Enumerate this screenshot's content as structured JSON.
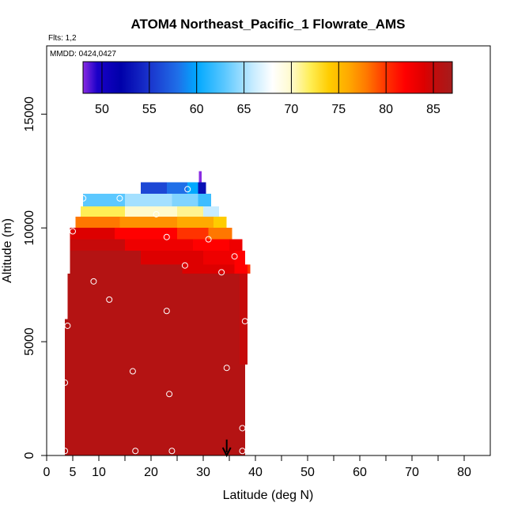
{
  "chart_data": {
    "type": "heatmap",
    "title": "ATOM4 Northeast_Pacific_1 Flowrate_AMS",
    "flights_note": "Flts: 1,2",
    "dates_note": "MMDD: 0424,0427",
    "xlabel": "Latitude (deg N)",
    "ylabel": "Altitude (m)",
    "xlim": [
      0,
      85
    ],
    "ylim": [
      0,
      18000
    ],
    "x_ticks": [
      0,
      5,
      10,
      20,
      30,
      40,
      50,
      60,
      70,
      80
    ],
    "x_minor_ticks": [
      15,
      25,
      35,
      45,
      55,
      65,
      75
    ],
    "y_ticks": [
      0,
      5000,
      10000,
      15000
    ],
    "colorbar": {
      "range": [
        48,
        87
      ],
      "ticks": [
        50,
        55,
        60,
        65,
        70,
        75,
        80,
        85
      ],
      "placement": "top-inside"
    },
    "colormap": [
      [
        48,
        "#8a2be2"
      ],
      [
        49.5,
        "#1a00c8"
      ],
      [
        52,
        "#0000aa"
      ],
      [
        55,
        "#1a33cc"
      ],
      [
        58,
        "#1f6fe8"
      ],
      [
        60,
        "#00a8ff"
      ],
      [
        63,
        "#5cc8ff"
      ],
      [
        66,
        "#c8ecff"
      ],
      [
        68,
        "#ffffff"
      ],
      [
        70,
        "#fffacd"
      ],
      [
        72,
        "#ffee55"
      ],
      [
        74,
        "#ffcc00"
      ],
      [
        76,
        "#ffaa00"
      ],
      [
        78,
        "#ff7700"
      ],
      [
        80,
        "#ff3300"
      ],
      [
        82,
        "#ff0000"
      ],
      [
        84,
        "#dd0000"
      ],
      [
        85.5,
        "#bb0f0f"
      ],
      [
        87,
        "#a61c1c"
      ]
    ],
    "field_rows": [
      {
        "alt_bottom": 0,
        "alt_top": 6000,
        "lat_start": 3.5,
        "lat_end": 38,
        "segments": [
          {
            "lat_start": 3.5,
            "value": 86
          }
        ]
      },
      {
        "alt_bottom": 6000,
        "alt_top": 8000,
        "lat_start": 4,
        "lat_end": 38.5,
        "segments": [
          {
            "lat_start": 4,
            "value": 86
          }
        ]
      },
      {
        "alt_bottom": 4000,
        "alt_top": 8000,
        "lat_start": 37,
        "lat_end": 38.5,
        "segments": [
          {
            "lat_start": 37,
            "value": 85
          }
        ]
      },
      {
        "alt_bottom": 8000,
        "alt_top": 8400,
        "lat_start": 4.5,
        "lat_end": 39,
        "segments": [
          {
            "lat_start": 4.5,
            "value": 86
          },
          {
            "lat_start": 26,
            "value": 84
          },
          {
            "lat_start": 36,
            "value": 82
          },
          {
            "lat_start": 38.5,
            "value": 80
          }
        ]
      },
      {
        "alt_bottom": 8400,
        "alt_top": 9000,
        "lat_start": 4.5,
        "lat_end": 38,
        "segments": [
          {
            "lat_start": 4.5,
            "value": 86
          },
          {
            "lat_start": 18,
            "value": 84
          },
          {
            "lat_start": 30,
            "value": 83
          },
          {
            "lat_start": 36,
            "value": 82
          }
        ]
      },
      {
        "alt_bottom": 9000,
        "alt_top": 9500,
        "lat_start": 4.5,
        "lat_end": 37.5,
        "segments": [
          {
            "lat_start": 4.5,
            "value": 85
          },
          {
            "lat_start": 15,
            "value": 83
          },
          {
            "lat_start": 28,
            "value": 82
          },
          {
            "lat_start": 35,
            "value": 83
          }
        ]
      },
      {
        "alt_bottom": 9500,
        "alt_top": 10000,
        "lat_start": 4.5,
        "lat_end": 35.5,
        "segments": [
          {
            "lat_start": 4.5,
            "value": 84
          },
          {
            "lat_start": 13,
            "value": 82
          },
          {
            "lat_start": 25,
            "value": 80
          },
          {
            "lat_start": 31,
            "value": 78
          }
        ]
      },
      {
        "alt_bottom": 10000,
        "alt_top": 10500,
        "lat_start": 5.5,
        "lat_end": 34.5,
        "segments": [
          {
            "lat_start": 5.5,
            "value": 78
          },
          {
            "lat_start": 14,
            "value": 77
          },
          {
            "lat_start": 25,
            "value": 76
          },
          {
            "lat_start": 32,
            "value": 74
          }
        ]
      },
      {
        "alt_bottom": 10500,
        "alt_top": 10950,
        "lat_start": 6.5,
        "lat_end": 33,
        "segments": [
          {
            "lat_start": 6.5,
            "value": 72
          },
          {
            "lat_start": 15,
            "value": 70
          },
          {
            "lat_start": 25,
            "value": 71
          },
          {
            "lat_start": 30,
            "value": 66
          }
        ]
      },
      {
        "alt_bottom": 10950,
        "alt_top": 11500,
        "lat_start": 7,
        "lat_end": 31.5,
        "segments": [
          {
            "lat_start": 7,
            "value": 63
          },
          {
            "lat_start": 15,
            "value": 65
          },
          {
            "lat_start": 24,
            "value": 64
          },
          {
            "lat_start": 29,
            "value": 62
          }
        ]
      },
      {
        "alt_bottom": 11500,
        "alt_top": 12000,
        "lat_start": 18,
        "lat_end": 30.5,
        "segments": [
          {
            "lat_start": 18,
            "value": 56
          },
          {
            "lat_start": 23,
            "value": 58
          },
          {
            "lat_start": 27,
            "value": 60
          },
          {
            "lat_start": 29,
            "value": 53
          }
        ]
      },
      {
        "alt_bottom": 12000,
        "alt_top": 12500,
        "lat_start": 29.2,
        "lat_end": 29.7,
        "segments": [
          {
            "lat_start": 29.2,
            "value": 48
          }
        ]
      }
    ],
    "sample_points": [
      {
        "lat": 7,
        "alt": 11300
      },
      {
        "lat": 14,
        "alt": 11300
      },
      {
        "lat": 27,
        "alt": 11700
      },
      {
        "lat": 21,
        "alt": 10600
      },
      {
        "lat": 5,
        "alt": 9850
      },
      {
        "lat": 23,
        "alt": 9600
      },
      {
        "lat": 31,
        "alt": 9500
      },
      {
        "lat": 36,
        "alt": 8750
      },
      {
        "lat": 26.5,
        "alt": 8350
      },
      {
        "lat": 33.5,
        "alt": 8050
      },
      {
        "lat": 9,
        "alt": 7650
      },
      {
        "lat": 12,
        "alt": 6850
      },
      {
        "lat": 23,
        "alt": 6350
      },
      {
        "lat": 38,
        "alt": 5900
      },
      {
        "lat": 4,
        "alt": 5700
      },
      {
        "lat": 34.5,
        "alt": 3850
      },
      {
        "lat": 16.5,
        "alt": 3700
      },
      {
        "lat": 3.5,
        "alt": 3200
      },
      {
        "lat": 23.5,
        "alt": 2700
      },
      {
        "lat": 37.5,
        "alt": 1200
      },
      {
        "lat": 3.5,
        "alt": 200
      },
      {
        "lat": 17,
        "alt": 200
      },
      {
        "lat": 24,
        "alt": 200
      },
      {
        "lat": 37.5,
        "alt": 200
      }
    ],
    "arrow_marker": {
      "lat": 34.5,
      "alt_top": 700,
      "alt_bottom": 0
    }
  }
}
